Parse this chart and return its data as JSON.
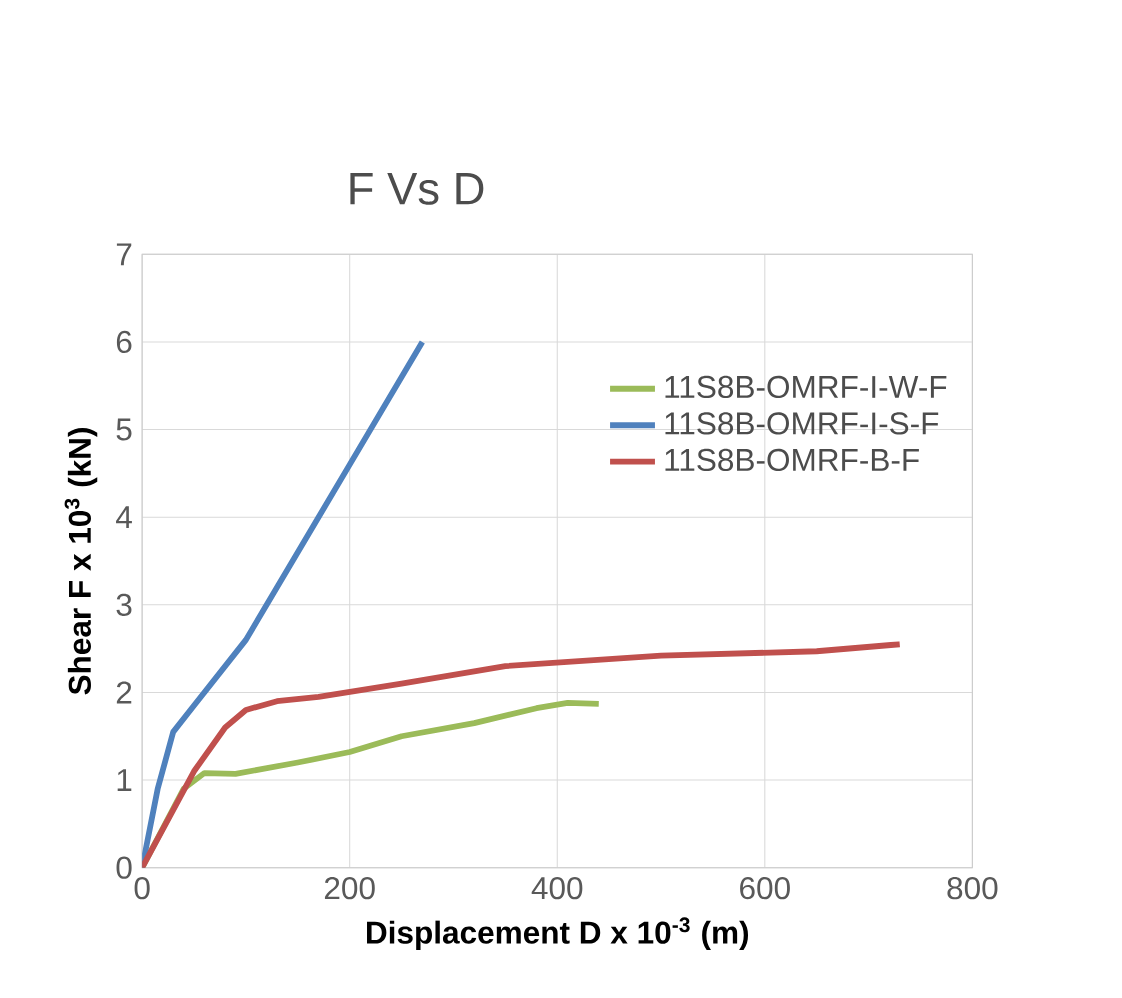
{
  "chart_data": {
    "type": "line",
    "title": "F Vs D",
    "xlabel": "Displacement D x 10$^{-3}$ (m)",
    "ylabel": "Shear F x 10$^{3}$ (kN)",
    "xlim": [
      0,
      800
    ],
    "xticks": [
      0,
      200,
      400,
      600,
      800
    ],
    "ylim": [
      0,
      7
    ],
    "yticks": [
      0,
      1,
      2,
      3,
      4,
      5,
      6,
      7
    ],
    "grid": true,
    "legend": "right",
    "marker": "none",
    "line_style": "solid",
    "series": [
      {
        "name": "11S8B-OMRF-I-W-F",
        "color": "#9bbb59",
        "x": [
          0,
          40,
          60,
          90,
          150,
          200,
          250,
          320,
          380,
          410,
          440
        ],
        "values": [
          0,
          0.9,
          1.08,
          1.07,
          1.2,
          1.32,
          1.5,
          1.65,
          1.82,
          1.88,
          1.87
        ]
      },
      {
        "name": "11S8B-OMRF-I-S-F",
        "color": "#4f81bd",
        "x": [
          0,
          15,
          30,
          50,
          100,
          200,
          270
        ],
        "values": [
          0,
          0.9,
          1.55,
          1.85,
          2.6,
          4.6,
          6.0
        ]
      },
      {
        "name": "11S8B-OMRF-B-F",
        "color": "#c0504d",
        "x": [
          0,
          50,
          80,
          100,
          130,
          170,
          250,
          350,
          500,
          650,
          730
        ],
        "values": [
          0,
          1.1,
          1.6,
          1.8,
          1.9,
          1.95,
          2.1,
          2.3,
          2.42,
          2.47,
          2.55
        ]
      }
    ]
  }
}
